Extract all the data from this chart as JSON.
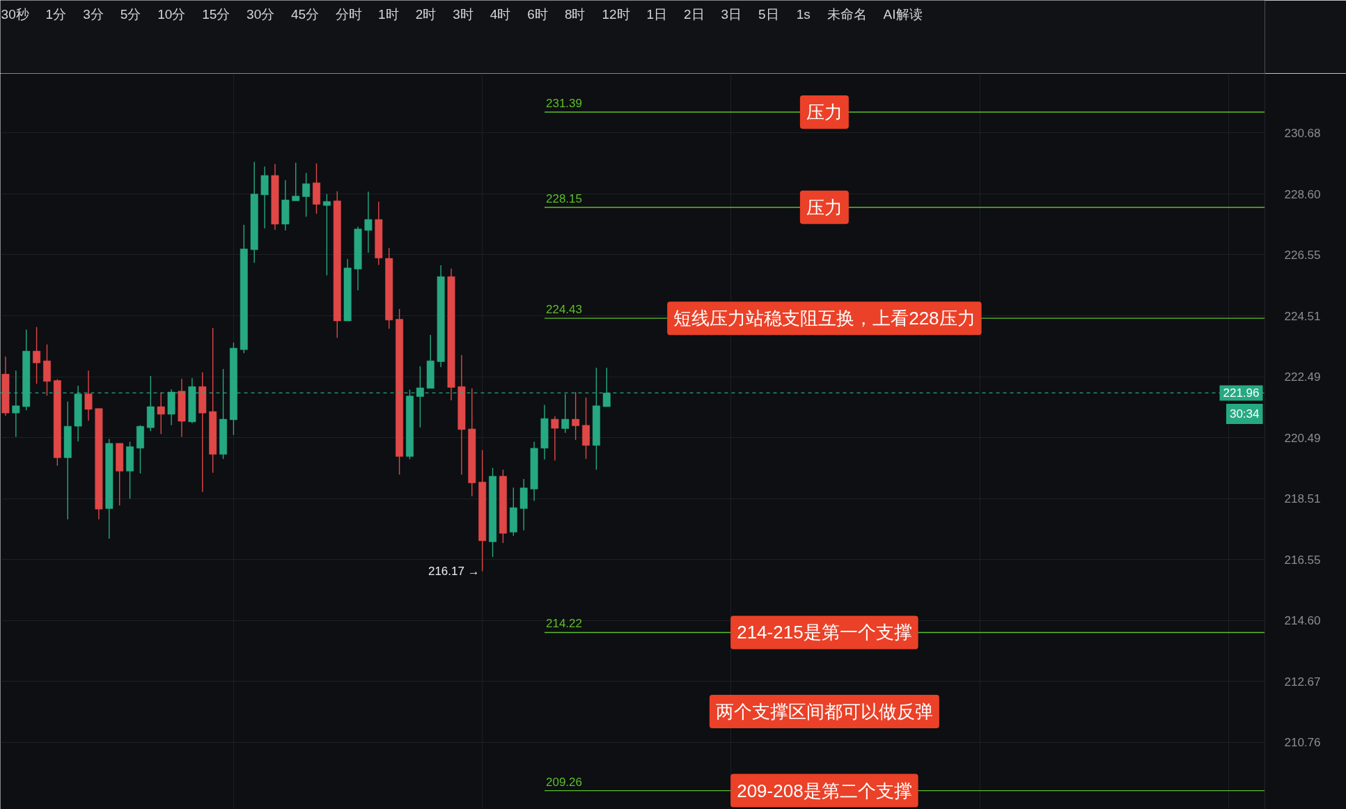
{
  "chart_data": {
    "type": "candlestick",
    "categories": [
      null,
      null,
      null,
      null,
      null,
      null,
      null,
      null,
      null,
      null,
      null,
      null,
      null,
      null,
      null,
      null,
      null,
      null,
      null,
      null,
      null,
      null,
      null,
      null,
      null,
      null,
      null,
      null,
      null,
      null,
      null,
      null,
      null,
      null,
      null,
      null,
      null,
      null,
      null,
      null,
      null,
      null,
      null,
      null,
      null,
      null,
      null,
      null,
      null,
      null,
      null,
      null,
      null,
      null,
      null,
      null,
      null,
      null,
      null,
      null,
      null,
      null,
      null,
      null,
      null,
      null,
      null,
      null,
      null,
      null,
      null,
      null,
      null,
      null,
      null,
      null,
      null,
      null,
      null,
      null,
      null,
      null,
      null,
      null,
      null,
      null,
      null,
      null,
      null,
      null,
      null,
      null,
      null,
      null,
      null,
      null,
      null,
      null,
      null,
      null,
      null,
      null,
      null,
      null,
      null,
      null,
      null,
      null,
      null,
      null,
      null,
      null,
      null,
      null,
      null,
      null,
      null,
      null,
      null,
      null,
      null,
      null
    ],
    "ohlc": [
      [
        222.58,
        223.16,
        221.21,
        221.3
      ],
      [
        221.3,
        222.7,
        220.52,
        221.54
      ],
      [
        221.51,
        224.05,
        221.39,
        223.34
      ],
      [
        223.34,
        224.14,
        222.26,
        222.95
      ],
      [
        223.02,
        223.56,
        221.87,
        222.34
      ],
      [
        222.37,
        222.41,
        219.58,
        219.84
      ],
      [
        219.84,
        221.68,
        217.84,
        220.87
      ],
      [
        220.87,
        222.2,
        220.37,
        221.93
      ],
      [
        221.93,
        222.7,
        221.05,
        221.42
      ],
      [
        221.45,
        221.45,
        217.84,
        218.17
      ],
      [
        218.19,
        220.45,
        217.22,
        220.31
      ],
      [
        220.31,
        220.31,
        218.29,
        219.4
      ],
      [
        219.4,
        220.36,
        218.51,
        220.2
      ],
      [
        220.15,
        220.9,
        219.33,
        220.87
      ],
      [
        220.82,
        222.52,
        220.71,
        221.51
      ],
      [
        221.51,
        221.98,
        220.61,
        221.26
      ],
      [
        221.26,
        222.08,
        220.9,
        221.99
      ],
      [
        222.02,
        222.43,
        220.52,
        221.03
      ],
      [
        221.01,
        222.45,
        220.97,
        222.17
      ],
      [
        222.17,
        222.64,
        218.73,
        221.3
      ],
      [
        221.35,
        224.11,
        219.35,
        219.95
      ],
      [
        219.95,
        222.75,
        219.8,
        221.1
      ],
      [
        221.08,
        223.62,
        220.58,
        223.44
      ],
      [
        223.39,
        227.56,
        223.27,
        226.75
      ],
      [
        226.72,
        229.69,
        226.28,
        228.6
      ],
      [
        228.57,
        229.53,
        227.44,
        229.23
      ],
      [
        229.23,
        229.62,
        227.39,
        227.58
      ],
      [
        227.58,
        229.07,
        227.37,
        228.4
      ],
      [
        228.37,
        229.66,
        228.37,
        228.53
      ],
      [
        228.51,
        229.31,
        227.83,
        228.95
      ],
      [
        228.98,
        229.64,
        227.93,
        228.25
      ],
      [
        228.21,
        228.6,
        225.86,
        228.35
      ],
      [
        228.37,
        228.69,
        223.78,
        224.34
      ],
      [
        224.34,
        226.41,
        224.34,
        226.11
      ],
      [
        226.07,
        227.5,
        225.36,
        227.42
      ],
      [
        227.37,
        228.68,
        226.62,
        227.74
      ],
      [
        227.74,
        228.34,
        226.21,
        226.44
      ],
      [
        226.43,
        226.78,
        224.08,
        224.37
      ],
      [
        224.4,
        224.74,
        219.29,
        219.88
      ],
      [
        219.88,
        222.07,
        219.79,
        221.86
      ],
      [
        221.84,
        222.84,
        220.83,
        222.13
      ],
      [
        222.11,
        223.88,
        222.11,
        223.02
      ],
      [
        222.99,
        226.2,
        222.81,
        225.82
      ],
      [
        225.82,
        226.09,
        221.72,
        222.14
      ],
      [
        222.17,
        223.21,
        219.29,
        220.76
      ],
      [
        220.78,
        222.11,
        218.59,
        219.02
      ],
      [
        219.05,
        220.09,
        216.17,
        217.15
      ],
      [
        217.12,
        219.51,
        216.63,
        219.24
      ],
      [
        219.24,
        219.45,
        217.08,
        217.39
      ],
      [
        217.43,
        218.87,
        217.31,
        218.22
      ],
      [
        218.19,
        219.15,
        217.49,
        218.86
      ],
      [
        218.82,
        220.36,
        218.44,
        220.15
      ],
      [
        220.15,
        221.57,
        219.78,
        221.12
      ],
      [
        221.1,
        221.19,
        219.75,
        220.8
      ],
      [
        220.79,
        221.93,
        220.65,
        221.1
      ],
      [
        221.1,
        221.99,
        220.42,
        220.88
      ],
      [
        220.9,
        221.81,
        219.8,
        220.24
      ],
      [
        220.24,
        222.79,
        219.45,
        221.54
      ],
      [
        221.51,
        222.79,
        221.51,
        221.96
      ],
      null,
      null,
      null,
      null,
      null,
      null,
      null,
      null,
      null,
      null,
      null,
      null,
      null,
      null,
      null,
      null,
      null,
      null,
      null,
      null,
      null,
      null,
      null,
      null,
      null,
      null,
      null,
      null,
      null,
      null,
      null,
      null,
      null,
      null,
      null,
      null,
      null,
      null,
      null,
      null,
      null,
      null,
      null,
      null,
      null,
      null,
      null,
      null,
      null,
      null,
      null,
      null,
      null,
      null,
      null,
      null,
      null,
      null,
      null,
      null,
      null,
      null,
      null
    ],
    "colors": [
      "#e04848",
      "#26a982",
      "#26a982",
      "#e04848",
      "#e04848",
      "#e04848",
      "#26a982",
      "#26a982",
      "#e04848",
      "#e04848",
      "#26a982",
      "#e04848",
      "#26a982",
      "#26a982",
      "#26a982",
      "#e04848",
      "#26a982",
      "#e04848",
      "#26a982",
      "#e04848",
      "#e04848",
      "#26a982",
      "#26a982",
      "#26a982",
      "#26a982",
      "#26a982",
      "#e04848",
      "#26a982",
      "#26a982",
      "#26a982",
      "#e04848",
      "#26a982",
      "#e04848",
      "#26a982",
      "#26a982",
      "#26a982",
      "#e04848",
      "#e04848",
      "#e04848",
      "#26a982",
      "#26a982",
      "#26a982",
      "#26a982",
      "#e04848",
      "#e04848",
      "#e04848",
      "#e04848",
      "#26a982",
      "#e04848",
      "#26a982",
      "#26a982",
      "#26a982",
      "#26a982",
      "#e04848",
      "#26a982",
      "#e04848",
      "#e04848",
      "#26a982",
      "#26a982",
      null,
      null,
      null,
      null,
      null,
      null,
      null,
      null,
      null,
      null,
      null,
      null,
      null,
      null,
      null,
      null,
      null,
      null,
      null,
      null,
      null,
      null,
      null,
      null,
      null,
      null,
      null,
      null,
      null,
      null,
      null,
      null,
      null,
      null,
      null,
      null,
      null,
      null,
      null,
      null,
      null,
      null,
      null,
      null,
      null,
      null,
      null,
      null,
      null,
      null,
      null,
      null,
      null,
      null,
      null,
      null,
      null,
      null,
      null,
      null,
      null,
      null,
      null
    ],
    "value_labels": [
      null,
      null,
      null,
      null,
      null,
      null,
      null,
      null,
      null,
      null,
      null,
      null,
      null,
      null,
      null,
      null,
      null,
      null,
      null,
      null,
      null,
      null,
      null,
      null,
      null,
      null,
      null,
      null,
      null,
      null,
      null,
      null,
      null,
      null,
      null,
      null,
      null,
      null,
      null,
      null,
      null,
      null,
      null,
      null,
      null,
      null,
      "216.17 →",
      null,
      null,
      null,
      null,
      null,
      null,
      null,
      null,
      null,
      null,
      null,
      null,
      null,
      null,
      null,
      null,
      null,
      null,
      null,
      null,
      null,
      null,
      null,
      null,
      null,
      null,
      null,
      null,
      null,
      null,
      null,
      null,
      null,
      null,
      null,
      null,
      null,
      null,
      null,
      null,
      null,
      null,
      null,
      null,
      null,
      null,
      null,
      null,
      null,
      null,
      null,
      null,
      null,
      null,
      null,
      null,
      null,
      null,
      null,
      null,
      null,
      null,
      null,
      null,
      null,
      null,
      null,
      null,
      null,
      null,
      null,
      null,
      null,
      null,
      null
    ],
    "log": "y",
    "ylim": [
      208.68,
      232.72
    ],
    "yticks": [
      230.68,
      {
        "value": 228.6,
        "label": "228.60"
      },
      226.55,
      224.51,
      222.49,
      220.49,
      218.51,
      216.55,
      {
        "value": 214.6,
        "label": "214.60"
      },
      212.67,
      210.76
    ],
    "grid": true,
    "tick_labels": "y",
    "ref_lines": [
      {
        "axis": "y",
        "value": 231.39,
        "label": "231.39",
        "color": "#5cbf2a"
      },
      {
        "axis": "y",
        "value": 228.15,
        "label": "228.15",
        "color": "#5cbf2a"
      },
      {
        "axis": "y",
        "value": 224.43,
        "label": "224.43",
        "color": "#5cbf2a"
      },
      {
        "axis": "y",
        "value": 214.22,
        "label": "214.22",
        "color": "#5cbf2a"
      },
      {
        "axis": "y",
        "value": 209.26,
        "label": "209.26",
        "color": "#5cbf2a"
      },
      {
        "axis": "y",
        "value": 221.96,
        "label": "221.96\n30:34",
        "color": "#26a982",
        "line_style": "dashed"
      }
    ],
    "annotations": [
      "30秒",
      "1分",
      "3分",
      "5分",
      "10分",
      "15分",
      "30分",
      "45分",
      "分时",
      "1时",
      "2时",
      "3时",
      "4时",
      "6时",
      "8时",
      "12时",
      "1日",
      "2日",
      "3日",
      "5日",
      "1s",
      "未命名",
      "AI解读",
      {
        "text": "压力",
        "y": 231.39
      },
      {
        "text": "压力",
        "y": 228.15
      },
      {
        "text": "短线压力站稳支阻互换，上看228压力",
        "y": 224.43
      },
      {
        "text": "214-215是第一个支撑",
        "y": 214.22
      },
      "两个支撑区间都可以做反弹",
      {
        "text": "209-208是第二个支撑",
        "y": 209.26
      }
    ]
  }
}
